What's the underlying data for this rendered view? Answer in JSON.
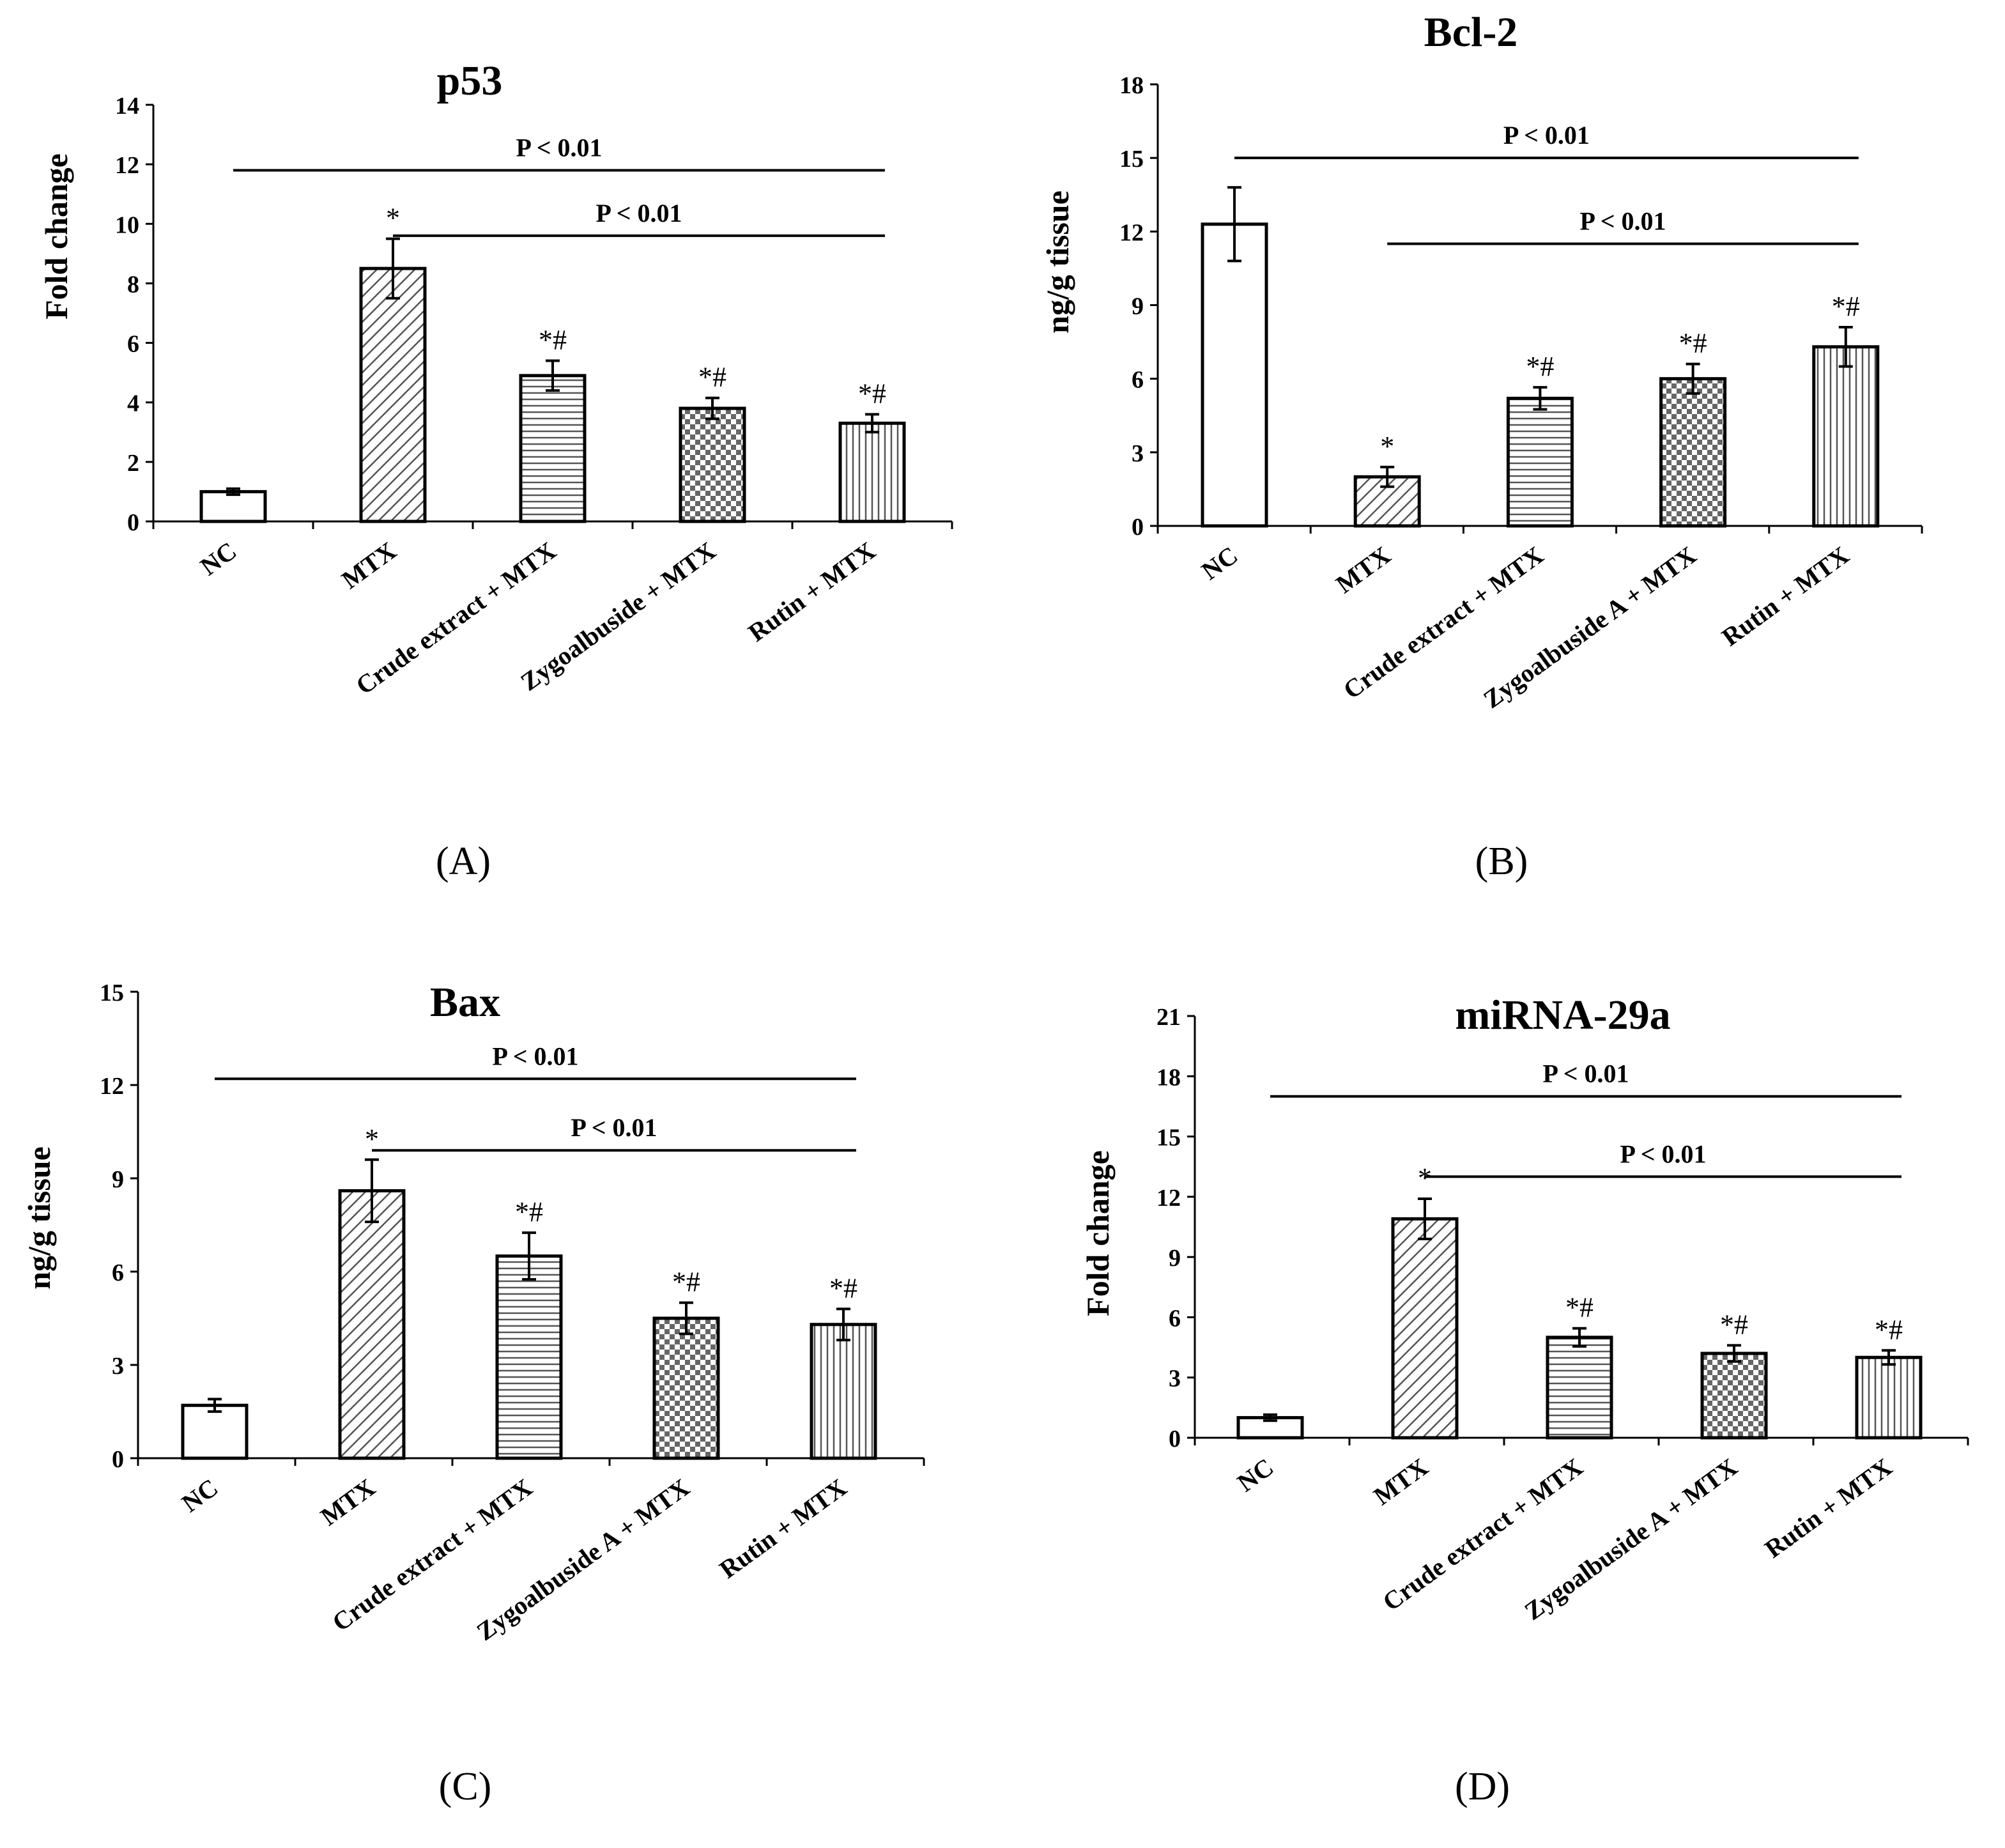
{
  "colors": {
    "ink": "#000000",
    "background": "#ffffff",
    "bar_fill": "#ffffff",
    "pattern_line": "#555555",
    "checker_dark": "#666666"
  },
  "chart_data": [
    {
      "type": "bar",
      "title": "p53",
      "ylabel": "Fold change",
      "panel_label": "(A)",
      "ylim": [
        0,
        14
      ],
      "yticks": [
        0,
        2,
        4,
        6,
        8,
        10,
        12,
        14
      ],
      "categories": [
        "NC",
        "MTX",
        "Crude extract + MTX",
        "Zygoalbuside + MTX",
        "Rutin + MTX"
      ],
      "values": [
        1.0,
        8.5,
        4.9,
        3.8,
        3.3
      ],
      "errors": [
        0.1,
        1.0,
        0.5,
        0.35,
        0.3
      ],
      "annotations": [
        "",
        "*",
        "*#",
        "*#",
        "*#"
      ],
      "patterns": [
        "none",
        "diag",
        "hlines",
        "checker",
        "vlines"
      ],
      "significance": [
        {
          "label": "P < 0.01",
          "from": 0,
          "to": 4,
          "y": 11.8
        },
        {
          "label": "P < 0.01",
          "from": 1,
          "to": 4,
          "y": 9.6
        }
      ]
    },
    {
      "type": "bar",
      "title": "Bcl-2",
      "ylabel": "ng/g tissue",
      "panel_label": "(B)",
      "ylim": [
        0,
        18
      ],
      "yticks": [
        0,
        3,
        6,
        9,
        12,
        15,
        18
      ],
      "categories": [
        "NC",
        "MTX",
        "Crude extract + MTX",
        "Zygoalbuside A + MTX",
        "Rutin + MTX"
      ],
      "values": [
        12.3,
        2.0,
        5.2,
        6.0,
        7.3
      ],
      "errors": [
        1.5,
        0.4,
        0.45,
        0.6,
        0.8
      ],
      "annotations": [
        "",
        "*",
        "*#",
        "*#",
        "*#"
      ],
      "patterns": [
        "none",
        "diag",
        "hlines",
        "checker",
        "vlines"
      ],
      "significance": [
        {
          "label": "P < 0.01",
          "from": 0,
          "to": 4,
          "y": 15.0
        },
        {
          "label": "P < 0.01",
          "from": 1,
          "to": 4,
          "y": 11.5
        }
      ]
    },
    {
      "type": "bar",
      "title": "Bax",
      "ylabel": "ng/g tissue",
      "panel_label": "(C)",
      "ylim": [
        0,
        15
      ],
      "yticks": [
        0,
        3,
        6,
        9,
        12,
        15
      ],
      "categories": [
        "NC",
        "MTX",
        "Crude extract + MTX",
        "Zygoalbuside A + MTX",
        "Rutin + MTX"
      ],
      "values": [
        1.7,
        8.6,
        6.5,
        4.5,
        4.3
      ],
      "errors": [
        0.2,
        1.0,
        0.75,
        0.5,
        0.5
      ],
      "annotations": [
        "",
        "*",
        "*#",
        "*#",
        "*#"
      ],
      "patterns": [
        "none",
        "diag",
        "hlines",
        "checker",
        "vlines"
      ],
      "significance": [
        {
          "label": "P < 0.01",
          "from": 0,
          "to": 4,
          "y": 12.2
        },
        {
          "label": "P < 0.01",
          "from": 1,
          "to": 4,
          "y": 9.9
        }
      ]
    },
    {
      "type": "bar",
      "title": "miRNA-29a",
      "ylabel": "Fold change",
      "panel_label": "(D)",
      "ylim": [
        0,
        21
      ],
      "yticks": [
        0,
        3,
        6,
        9,
        12,
        15,
        18,
        21
      ],
      "categories": [
        "NC",
        "MTX",
        "Crude extract + MTX",
        "Zygoalbuside A + MTX",
        "Rutin + MTX"
      ],
      "values": [
        1.0,
        10.9,
        5.0,
        4.2,
        4.0
      ],
      "errors": [
        0.15,
        1.0,
        0.45,
        0.4,
        0.35
      ],
      "annotations": [
        "",
        "*",
        "*#",
        "*#",
        "*#"
      ],
      "patterns": [
        "none",
        "diag",
        "hlines",
        "checker",
        "vlines"
      ],
      "significance": [
        {
          "label": "P < 0.01",
          "from": 0,
          "to": 4,
          "y": 17.0
        },
        {
          "label": "P < 0.01",
          "from": 1,
          "to": 4,
          "y": 13.0
        }
      ]
    }
  ]
}
